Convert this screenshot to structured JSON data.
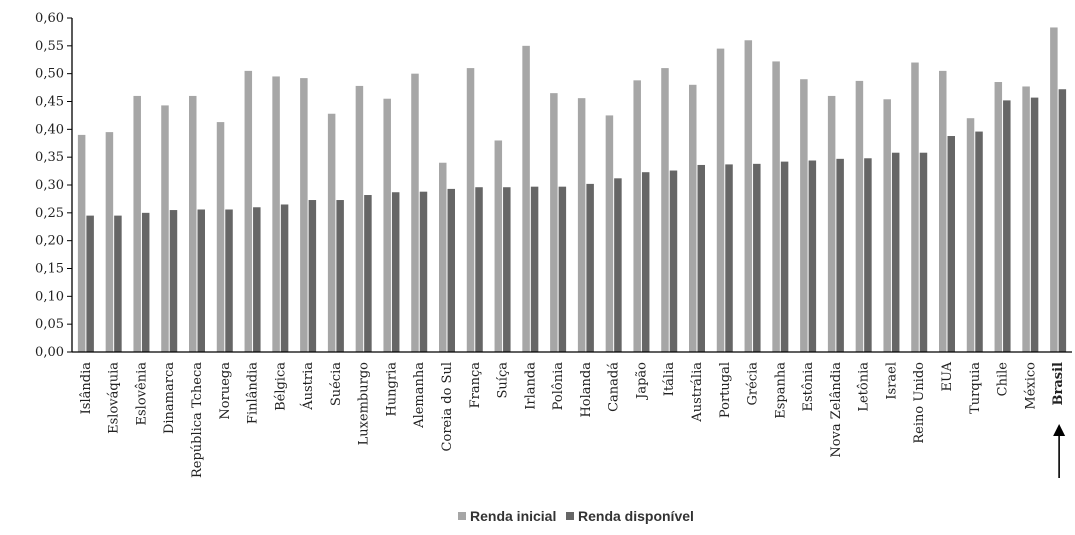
{
  "chart_data": {
    "type": "bar",
    "title": "",
    "xlabel": "",
    "ylabel": "",
    "ylim": [
      0,
      0.6
    ],
    "yticks": [
      "0,00",
      "0,05",
      "0,10",
      "0,15",
      "0,20",
      "0,25",
      "0,30",
      "0,35",
      "0,40",
      "0,45",
      "0,50",
      "0,55",
      "0,60"
    ],
    "grid": false,
    "legend_position": "bottom-center",
    "highlight_category": "Brasil",
    "categories": [
      "Islândia",
      "Eslováquia",
      "Eslovênia",
      "Dinamarca",
      "República Tcheca",
      "Noruega",
      "Finlândia",
      "Bélgica",
      "Áustria",
      "Suécia",
      "Luxemburgo",
      "Hungria",
      "Alemanha",
      "Coreia do Sul",
      "França",
      "Suíça",
      "Irlanda",
      "Polônia",
      "Holanda",
      "Canadá",
      "Japão",
      "Itália",
      "Austrália",
      "Portugal",
      "Grécia",
      "Espanha",
      "Estônia",
      "Nova Zelândia",
      "Letônia",
      "Israel",
      "Reino Unido",
      "EUA",
      "Turquia",
      "Chile",
      "México",
      "Brasil"
    ],
    "series": [
      {
        "name": "Renda inicial",
        "color": "#a6a6a6",
        "values": [
          0.39,
          0.395,
          0.46,
          0.443,
          0.46,
          0.413,
          0.505,
          0.495,
          0.492,
          0.428,
          0.478,
          0.455,
          0.5,
          0.34,
          0.51,
          0.38,
          0.55,
          0.465,
          0.456,
          0.425,
          0.488,
          0.51,
          0.48,
          0.545,
          0.56,
          0.522,
          0.49,
          0.46,
          0.487,
          0.454,
          0.52,
          0.505,
          0.42,
          0.485,
          0.477,
          0.583
        ]
      },
      {
        "name": "Renda disponível",
        "color": "#666666",
        "values": [
          0.245,
          0.245,
          0.25,
          0.255,
          0.256,
          0.256,
          0.26,
          0.265,
          0.273,
          0.273,
          0.282,
          0.287,
          0.288,
          0.293,
          0.296,
          0.296,
          0.297,
          0.297,
          0.302,
          0.312,
          0.323,
          0.326,
          0.336,
          0.337,
          0.338,
          0.342,
          0.344,
          0.347,
          0.348,
          0.358,
          0.358,
          0.388,
          0.396,
          0.452,
          0.457,
          0.472
        ]
      }
    ]
  }
}
